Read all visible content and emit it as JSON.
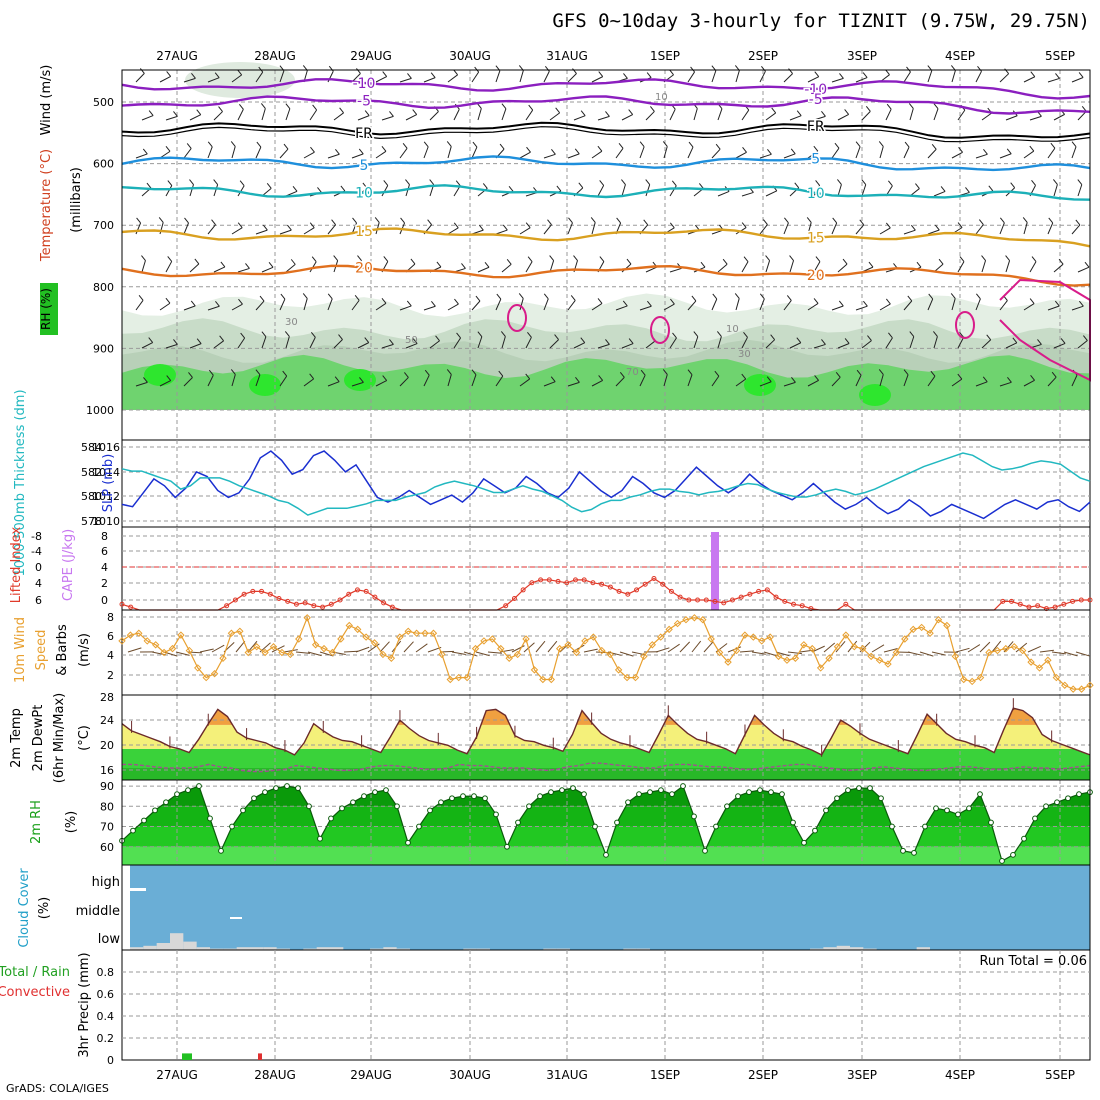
{
  "title": "GFS 0~10day 3-hourly for TIZNIT (9.75W, 29.75N)",
  "credit": "GrADS: COLA/IGES",
  "chart_data": [
    {
      "type": "contour",
      "panel": "upper-air",
      "dates": [
        "27AUG",
        "28AUG",
        "29AUG",
        "30AUG",
        "31AUG",
        "1SEP",
        "2SEP",
        "3SEP",
        "4SEP",
        "5SEP"
      ],
      "ylabel_main": "(millibars)",
      "ylabel_vars": [
        "RH (%)",
        "Temperature (°C)",
        "Wind (m/s)"
      ],
      "ylim": [
        1000,
        450
      ],
      "yticks": [
        500,
        600,
        700,
        800,
        900,
        1000
      ],
      "temperature_contours": [
        {
          "label": "-10",
          "pressure": 472,
          "color": "#8b1fbf"
        },
        {
          "label": "-5",
          "pressure": 500,
          "color": "#8b1fbf"
        },
        {
          "label": "FR",
          "pressure": 543,
          "color": "#000000"
        },
        {
          "label": "5",
          "pressure": 598,
          "color": "#1e8fdc"
        },
        {
          "label": "10",
          "pressure": 645,
          "color": "#1cb0b8"
        },
        {
          "label": "15",
          "pressure": 715,
          "color": "#d9a020"
        },
        {
          "label": "20",
          "pressure": 775,
          "color": "#e0701e"
        }
      ],
      "rh_contour_labels": [
        "10",
        "30",
        "50",
        "70"
      ]
    },
    {
      "type": "line",
      "panel": "slp-thickness",
      "ylabel_left": "1000-500mb Thickness (dm)",
      "ylabel_right": "SLP (mb)",
      "left_ticks": [
        "584",
        "582",
        "580",
        "578"
      ],
      "right_ticks": [
        "1016",
        "1014",
        "1012",
        "1010"
      ],
      "series": [
        {
          "name": "SLP (mb)",
          "color": "#1a2fd0",
          "ylim": [
            1009.8,
            1016.6
          ],
          "values": [
            1011.4,
            1011.2,
            1012.4,
            1013.6,
            1013.0,
            1012.0,
            1012.8,
            1014.2,
            1013.8,
            1012.6,
            1012.0,
            1012.4,
            1013.6,
            1015.4,
            1016.0,
            1015.2,
            1014.0,
            1014.4,
            1015.6,
            1016.0,
            1015.2,
            1014.2,
            1014.8,
            1013.4,
            1012.0,
            1011.6,
            1012.0,
            1012.6,
            1012.0,
            1011.4,
            1011.8,
            1012.2,
            1011.6,
            1012.4,
            1013.6,
            1013.0,
            1012.4,
            1012.8,
            1013.8,
            1013.2,
            1012.4,
            1012.0,
            1012.8,
            1014.2,
            1013.4,
            1012.6,
            1012.0,
            1012.6,
            1013.8,
            1013.2,
            1012.4,
            1012.0,
            1012.6,
            1013.6,
            1014.6,
            1013.8,
            1013.0,
            1012.4,
            1013.0,
            1014.0,
            1013.2,
            1012.6,
            1012.2,
            1011.8,
            1012.4,
            1013.2,
            1012.4,
            1011.6,
            1011.0,
            1011.4,
            1012.0,
            1011.2,
            1010.6,
            1011.0,
            1011.8,
            1011.2,
            1010.4,
            1010.8,
            1011.4,
            1011.0,
            1010.6,
            1010.2,
            1010.8,
            1011.4,
            1011.8,
            1011.4,
            1011.0,
            1011.6,
            1011.8,
            1011.2,
            1010.8,
            1011.6
          ]
        },
        {
          "name": "1000-500mb Thickness (dm)",
          "color": "#22b8c0",
          "ylim": [
            577.6,
            584.6
          ],
          "values": [
            582.4,
            582.2,
            582.2,
            581.9,
            581.6,
            581.3,
            580.6,
            580.9,
            581.6,
            581.6,
            581.6,
            581.3,
            580.9,
            580.6,
            580.3,
            580.0,
            579.6,
            579.4,
            578.9,
            578.3,
            578.6,
            578.9,
            578.9,
            578.9,
            579.1,
            579.3,
            579.6,
            579.6,
            579.6,
            579.9,
            580.1,
            580.3,
            580.8,
            581.1,
            581.3,
            581.1,
            580.9,
            580.6,
            580.3,
            580.3,
            580.6,
            580.9,
            580.6,
            580.4,
            580.0,
            579.6,
            579.0,
            578.6,
            578.8,
            579.3,
            579.6,
            579.6,
            579.9,
            580.1,
            580.4,
            580.6,
            580.6,
            580.4,
            580.3,
            580.1,
            580.3,
            580.4,
            580.6,
            580.9,
            581.1,
            581.0,
            580.6,
            580.3,
            580.1,
            579.9,
            579.9,
            580.1,
            580.4,
            580.6,
            580.4,
            580.1,
            580.3,
            580.6,
            581.0,
            581.4,
            581.8,
            582.2,
            582.6,
            582.9,
            583.2,
            583.5,
            583.8,
            583.6,
            583.1,
            582.6,
            582.3,
            582.4,
            582.6,
            582.9,
            583.1,
            583.0,
            582.8,
            582.2,
            581.6,
            581.3
          ]
        }
      ]
    },
    {
      "type": "line",
      "panel": "lifted-index-cape",
      "ylabel_left": "Lifted Index",
      "ylabel_right": "CAPE (J/kg)",
      "left_ticks": [
        "-8",
        "-4",
        "0",
        "4",
        "6"
      ],
      "right_ticks": [
        "8",
        "6",
        "4",
        "2",
        "0"
      ],
      "lifted_index_series": {
        "name": "Lifted Index",
        "color": "#e03a2a",
        "values": [
          5.2,
          5.6,
          6.0,
          6.0,
          6.0,
          6.0,
          6.0,
          6.0,
          6.0,
          6.0,
          6.0,
          6.0,
          5.4,
          4.6,
          3.8,
          3.4,
          3.4,
          3.8,
          4.4,
          4.8,
          5.2,
          5.0,
          5.4,
          5.6,
          5.2,
          4.6,
          3.8,
          3.2,
          3.4,
          4.2,
          5.0,
          5.6,
          6.0,
          6.0,
          6.0,
          6.0,
          6.0,
          6.0,
          6.0,
          6.0,
          6.0,
          6.0,
          6.0,
          6.0,
          5.4,
          4.4,
          3.2,
          2.2,
          1.8,
          1.8,
          2.0,
          2.2,
          1.8,
          1.8,
          2.2,
          2.4,
          2.8,
          3.4,
          3.8,
          3.2,
          2.4,
          1.6,
          2.4,
          3.4,
          4.2,
          4.6,
          4.6,
          4.6,
          4.8,
          5.0,
          4.6,
          4.2,
          3.8,
          3.4,
          3.2,
          4.2,
          4.8,
          5.2,
          5.4,
          5.8,
          6.0,
          6.0,
          6.0,
          5.2,
          6.0,
          6.0,
          6.0,
          6.0,
          6.0,
          6.0,
          6.0,
          6.0,
          6.0,
          6.0,
          6.0,
          6.0,
          6.0,
          6.0,
          6.0,
          6.0,
          6.0,
          4.8,
          4.8,
          5.2,
          5.6,
          5.4,
          5.8,
          5.6,
          5.2,
          4.8,
          4.6,
          4.6
        ]
      },
      "cape_bars": [
        {
          "date_index": 49,
          "value": 8.0,
          "color": "#c878f0"
        }
      ]
    },
    {
      "type": "line",
      "panel": "10m-wind",
      "ylabel": "10m Wind Speed (m/s) & Barbs",
      "yticks": [
        "8",
        "6",
        "4",
        "2"
      ],
      "ylim": [
        0,
        8.4
      ],
      "series": [
        {
          "name": "10m Wind Speed (m/s)",
          "color": "#e8a030",
          "values": [
            5.4,
            6.0,
            6.2,
            5.4,
            5.0,
            4.2,
            4.6,
            6.0,
            4.4,
            2.6,
            1.6,
            2.0,
            3.6,
            6.2,
            6.4,
            4.2,
            4.8,
            4.2,
            4.8,
            4.2,
            4.0,
            5.6,
            7.8,
            5.0,
            4.6,
            4.2,
            5.6,
            7.0,
            6.6,
            5.8,
            5.2,
            4.0,
            3.6,
            5.8,
            6.4,
            6.2,
            6.2,
            6.2,
            4.0,
            1.4,
            1.6,
            1.6,
            4.6,
            5.4,
            5.6,
            4.6,
            3.6,
            4.0,
            5.6,
            2.4,
            1.4,
            1.4,
            4.6,
            5.0,
            4.2,
            5.4,
            5.8,
            4.4,
            4.0,
            2.4,
            1.6,
            1.6,
            3.8,
            5.0,
            5.8,
            6.6,
            7.2,
            7.6,
            7.8,
            7.6,
            5.6,
            4.2,
            3.2,
            4.4,
            6.0,
            5.8,
            5.4,
            5.8,
            3.8,
            3.4,
            3.6,
            5.0,
            4.6,
            2.6,
            3.6,
            4.8,
            6.0,
            4.8,
            4.6,
            3.8,
            3.4,
            3.0,
            4.2,
            5.6,
            6.6,
            6.8,
            6.2,
            7.6,
            7.0,
            3.8,
            1.4,
            1.2,
            1.6,
            4.2,
            4.4,
            4.6,
            4.8,
            4.4,
            3.2,
            2.6,
            3.4,
            1.6,
            0.8,
            0.4,
            0.4,
            0.8
          ]
        }
      ]
    },
    {
      "type": "area",
      "panel": "2m-temp",
      "ylabel": "2m Temp 2m DewPt (6hr Min/Max) (°C)",
      "yticks": [
        "28",
        "24",
        "20",
        "16"
      ],
      "ylim": [
        14.8,
        29.0
      ],
      "series": [
        {
          "name": "2m Temp",
          "values": [
            24.2,
            23.0,
            22.4,
            21.8,
            21.2,
            20.4,
            20.0,
            19.4,
            21.6,
            24.2,
            26.6,
            25.4,
            22.8,
            21.8,
            21.4,
            21.0,
            20.2,
            19.8,
            19.0,
            21.0,
            24.2,
            23.0,
            22.0,
            21.4,
            21.2,
            20.6,
            20.0,
            19.4,
            22.0,
            24.8,
            23.4,
            22.2,
            21.4,
            21.0,
            20.6,
            19.8,
            19.2,
            22.0,
            26.4,
            26.6,
            25.6,
            22.2,
            21.4,
            21.2,
            20.6,
            20.2,
            19.6,
            22.4,
            26.4,
            24.4,
            22.6,
            21.6,
            21.0,
            20.6,
            20.0,
            19.4,
            22.4,
            25.6,
            24.0,
            22.6,
            21.6,
            21.2,
            20.6,
            20.0,
            19.2,
            22.4,
            25.6,
            24.0,
            22.6,
            21.6,
            21.2,
            20.4,
            19.8,
            19.0,
            21.8,
            24.8,
            23.8,
            22.6,
            21.6,
            21.0,
            20.4,
            19.8,
            19.2,
            22.4,
            25.8,
            24.2,
            22.6,
            21.6,
            21.2,
            20.6,
            20.2,
            19.4,
            23.2,
            26.8,
            26.4,
            25.2,
            22.4,
            21.4,
            20.8,
            20.2,
            19.6,
            19.0
          ]
        },
        {
          "name": "2m DewPt",
          "values": [
            17.4,
            17.4,
            17.2,
            17.0,
            16.8,
            16.8,
            16.8,
            17.0,
            17.4,
            17.0,
            16.8,
            16.4,
            16.2,
            16.2,
            16.4,
            16.6,
            17.2,
            17.0,
            16.8,
            16.6,
            16.4,
            16.4,
            16.6,
            17.0,
            17.2,
            17.2,
            17.0,
            16.8,
            16.6,
            16.6,
            16.8,
            17.4,
            17.2,
            17.2,
            17.0,
            16.8,
            16.8,
            16.8,
            16.6,
            16.4,
            16.6,
            17.0,
            17.2,
            17.6,
            17.6,
            17.4,
            17.2,
            17.0,
            16.8,
            16.8,
            17.2,
            17.4,
            17.4,
            17.2,
            17.0,
            17.0,
            16.8,
            16.6,
            16.6,
            16.8,
            17.0,
            17.2,
            17.4,
            17.4,
            17.0,
            16.8,
            16.6,
            16.4,
            16.6,
            16.8,
            17.0,
            16.8,
            16.6,
            16.4,
            16.4,
            16.6,
            16.8,
            17.0,
            17.0,
            16.8,
            16.6,
            16.6,
            16.8,
            17.0,
            16.8,
            16.8,
            16.6,
            16.8,
            17.0,
            17.2
          ]
        }
      ]
    },
    {
      "type": "area",
      "panel": "2m-rh",
      "ylabel": "2m RH (%)",
      "yticks": [
        "90",
        "80",
        "70",
        "60"
      ],
      "ylim": [
        51,
        93
      ],
      "series": [
        {
          "name": "2m RH",
          "values": [
            63,
            68,
            73,
            78,
            82,
            86,
            88,
            90,
            74,
            58,
            70,
            78,
            84,
            87,
            89,
            90,
            89,
            80,
            64,
            74,
            79,
            82,
            85,
            87,
            88,
            80,
            62,
            70,
            78,
            82,
            84,
            85,
            85,
            84,
            76,
            60,
            72,
            80,
            85,
            87,
            88,
            89,
            86,
            70,
            56,
            72,
            82,
            86,
            87,
            88,
            86,
            90,
            75,
            58,
            70,
            80,
            85,
            87,
            88,
            87,
            86,
            72,
            62,
            68,
            78,
            84,
            88,
            89,
            89,
            84,
            70,
            58,
            57,
            70,
            79,
            78,
            76,
            79,
            86,
            72,
            53,
            56,
            64,
            74,
            80,
            82,
            84,
            86,
            87
          ]
        }
      ]
    },
    {
      "type": "area",
      "panel": "cloud-cover",
      "ylabel": "Cloud Cover (%)",
      "ycategories": [
        "high",
        "middle",
        "low"
      ],
      "series": [
        {
          "name": "low",
          "values": [
            10,
            15,
            25,
            60,
            30,
            10,
            5,
            5,
            10,
            10,
            10,
            5,
            0,
            5,
            10,
            10,
            0,
            0,
            5,
            10,
            5,
            0,
            0,
            0,
            0,
            5,
            5,
            0,
            0,
            0,
            0,
            5,
            5,
            0,
            0,
            0,
            0,
            5,
            5,
            0,
            0,
            0,
            0,
            0,
            0,
            0,
            0,
            0,
            0,
            0,
            0,
            5,
            10,
            15,
            10,
            5,
            0,
            0,
            0,
            10,
            0,
            0,
            0,
            0,
            0,
            0,
            0,
            0,
            0,
            0,
            0,
            0
          ]
        }
      ]
    },
    {
      "type": "bar",
      "panel": "precip",
      "ylabel": "3hr Precip (mm)",
      "legend_left": [
        "Total / Rain",
        "Convective"
      ],
      "yticks": [
        "0.8",
        "0.6",
        "0.4",
        "0.2",
        "0"
      ],
      "ylim": [
        0,
        1.0
      ],
      "annotation": "Run Total = 0.06",
      "bars": [
        {
          "date_index": 6,
          "value": 0.06,
          "color": "#22c022"
        },
        {
          "date_index": 16,
          "value": 0.06,
          "color": "#e03030"
        }
      ]
    }
  ]
}
